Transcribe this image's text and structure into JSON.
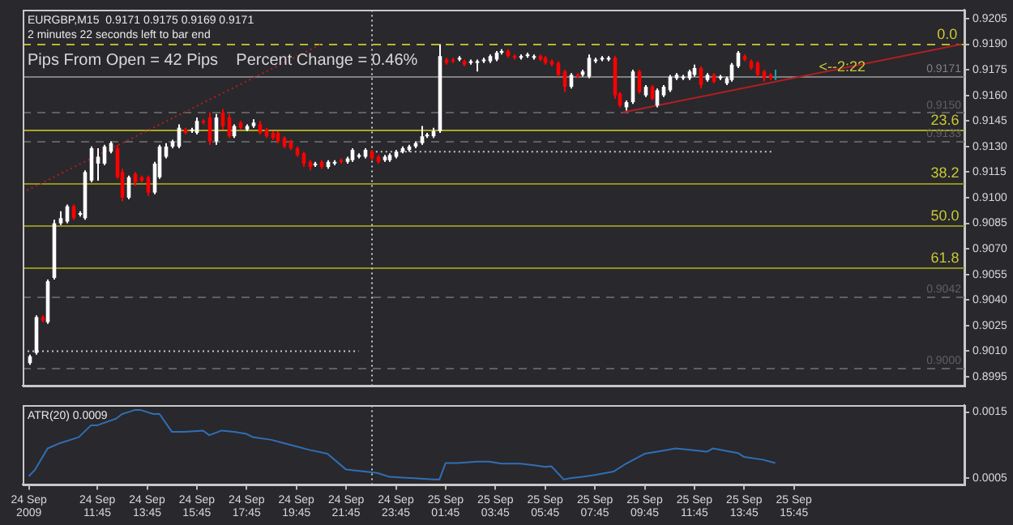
{
  "chart_data": [
    {
      "type": "candlestick",
      "title": "EURGBP,M15  0.9171 0.9175 0.9169 0.9171",
      "subtitle": "2 minutes 22 seconds left to bar end",
      "annotations": [
        "Pips From Open = 42 Pips    Percent Change = 0.46%",
        {
          "text": "<--2:22",
          "x": "2009-09-25T16:45",
          "y": 0.9171
        },
        {
          "text": "0.0",
          "x": "2009-09-25T21:30",
          "y": 0.919
        },
        {
          "text": "23.6",
          "x": "2009-09-25T21:15",
          "y": 0.914
        },
        {
          "text": "38.2",
          "x": "2009-09-25T21:15",
          "y": 0.9109
        },
        {
          "text": "50.0",
          "x": "2009-09-25T21:15",
          "y": 0.9084
        },
        {
          "text": "61.8",
          "x": "2009-09-25T21:15",
          "y": 0.9059
        }
      ],
      "x": [
        "2009-09-24T09:00",
        "2009-09-24T09:15",
        "2009-09-24T09:30",
        "2009-09-24T09:45",
        "2009-09-24T10:00",
        "2009-09-24T10:15",
        "2009-09-24T10:30",
        "2009-09-24T10:45",
        "2009-09-24T11:00",
        "2009-09-24T11:15",
        "2009-09-24T11:30",
        "2009-09-24T11:45",
        "2009-09-24T12:00",
        "2009-09-24T12:15",
        "2009-09-24T12:30",
        "2009-09-24T12:45",
        "2009-09-24T13:00",
        "2009-09-24T13:15",
        "2009-09-24T13:30",
        "2009-09-24T13:45",
        "2009-09-24T14:00",
        "2009-09-24T14:15",
        "2009-09-24T14:30",
        "2009-09-24T14:45",
        "2009-09-24T15:00",
        "2009-09-24T15:15",
        "2009-09-24T15:30",
        "2009-09-24T15:45",
        "2009-09-24T16:00",
        "2009-09-24T16:15",
        "2009-09-24T16:30",
        "2009-09-24T16:45",
        "2009-09-24T17:00",
        "2009-09-24T17:15",
        "2009-09-24T17:30",
        "2009-09-24T17:45",
        "2009-09-24T18:00",
        "2009-09-24T18:15",
        "2009-09-24T18:30",
        "2009-09-24T18:45",
        "2009-09-24T19:00",
        "2009-09-24T19:15",
        "2009-09-24T19:30",
        "2009-09-24T19:45",
        "2009-09-24T20:00",
        "2009-09-24T20:15",
        "2009-09-24T20:30",
        "2009-09-24T20:45",
        "2009-09-24T21:00",
        "2009-09-24T21:15",
        "2009-09-24T21:30",
        "2009-09-24T21:45",
        "2009-09-24T22:00",
        "2009-09-24T22:15",
        "2009-09-24T22:30",
        "2009-09-24T22:45",
        "2009-09-24T23:00",
        "2009-09-24T23:15",
        "2009-09-24T23:30",
        "2009-09-24T23:45",
        "2009-09-25T00:00",
        "2009-09-25T00:15",
        "2009-09-25T00:30",
        "2009-09-25T00:45",
        "2009-09-25T01:00",
        "2009-09-25T01:15",
        "2009-09-25T01:30",
        "2009-09-25T01:45",
        "2009-09-25T02:00",
        "2009-09-25T02:15",
        "2009-09-25T02:30",
        "2009-09-25T02:45",
        "2009-09-25T03:00",
        "2009-09-25T03:15",
        "2009-09-25T03:30",
        "2009-09-25T03:45",
        "2009-09-25T04:00",
        "2009-09-25T04:15",
        "2009-09-25T04:30",
        "2009-09-25T04:45",
        "2009-09-25T05:00",
        "2009-09-25T05:15",
        "2009-09-25T05:30",
        "2009-09-25T05:45",
        "2009-09-25T06:00",
        "2009-09-25T06:15",
        "2009-09-25T06:30",
        "2009-09-25T06:45",
        "2009-09-25T07:00",
        "2009-09-25T07:15",
        "2009-09-25T07:30",
        "2009-09-25T07:45",
        "2009-09-25T08:00",
        "2009-09-25T08:15",
        "2009-09-25T08:30",
        "2009-09-25T08:45",
        "2009-09-25T09:00",
        "2009-09-25T09:15",
        "2009-09-25T09:30",
        "2009-09-25T09:45",
        "2009-09-25T10:00",
        "2009-09-25T10:15",
        "2009-09-25T10:30",
        "2009-09-25T10:45",
        "2009-09-25T11:00",
        "2009-09-25T11:15",
        "2009-09-25T11:30",
        "2009-09-25T11:45",
        "2009-09-25T12:00",
        "2009-09-25T12:15",
        "2009-09-25T12:30",
        "2009-09-25T12:45",
        "2009-09-25T13:00",
        "2009-09-25T13:15",
        "2009-09-25T13:30",
        "2009-09-25T13:45",
        "2009-09-25T14:00",
        "2009-09-25T14:15",
        "2009-09-25T14:30",
        "2009-09-25T14:45",
        "2009-09-25T15:00"
      ],
      "ohlc": [
        [
          0.9003,
          0.9008,
          0.9002,
          0.9007
        ],
        [
          0.9009,
          0.9031,
          0.9008,
          0.903
        ],
        [
          0.903,
          0.9031,
          0.9027,
          0.9028
        ],
        [
          0.9027,
          0.9052,
          0.9026,
          0.9051
        ],
        [
          0.9053,
          0.9087,
          0.9052,
          0.9085
        ],
        [
          0.9085,
          0.9092,
          0.9084,
          0.9088
        ],
        [
          0.9086,
          0.9096,
          0.9085,
          0.9095
        ],
        [
          0.9095,
          0.9096,
          0.9087,
          0.9088
        ],
        [
          0.909,
          0.9092,
          0.9089,
          0.9091
        ],
        [
          0.9088,
          0.9116,
          0.9087,
          0.9115
        ],
        [
          0.911,
          0.913,
          0.9109,
          0.9129
        ],
        [
          0.912,
          0.9129,
          0.911,
          0.9124
        ],
        [
          0.912,
          0.9131,
          0.9119,
          0.913
        ],
        [
          0.9127,
          0.9133,
          0.9126,
          0.9132
        ],
        [
          0.9129,
          0.9131,
          0.9111,
          0.9112
        ],
        [
          0.9115,
          0.9117,
          0.9098,
          0.91
        ],
        [
          0.91,
          0.9113,
          0.9099,
          0.9112
        ],
        [
          0.9114,
          0.9115,
          0.9107,
          0.9109
        ],
        [
          0.9112,
          0.9113,
          0.9109,
          0.911
        ],
        [
          0.9112,
          0.9113,
          0.9101,
          0.9103
        ],
        [
          0.9103,
          0.9121,
          0.9102,
          0.912
        ],
        [
          0.9112,
          0.9131,
          0.9111,
          0.913
        ],
        [
          0.9124,
          0.9132,
          0.9123,
          0.913
        ],
        [
          0.913,
          0.9134,
          0.9129,
          0.9133
        ],
        [
          0.913,
          0.9143,
          0.9129,
          0.9141
        ],
        [
          0.914,
          0.9141,
          0.9137,
          0.9138
        ],
        [
          0.9139,
          0.9141,
          0.9138,
          0.914
        ],
        [
          0.9138,
          0.9147,
          0.9137,
          0.9145
        ],
        [
          0.9145,
          0.9146,
          0.9143,
          0.9144
        ],
        [
          0.9147,
          0.915,
          0.9131,
          0.9133
        ],
        [
          0.9133,
          0.9149,
          0.9131,
          0.9147
        ],
        [
          0.915,
          0.9152,
          0.914,
          0.9142
        ],
        [
          0.9147,
          0.9149,
          0.9135,
          0.9136
        ],
        [
          0.9136,
          0.9143,
          0.9135,
          0.9142
        ],
        [
          0.9144,
          0.9145,
          0.914,
          0.9141
        ],
        [
          0.914,
          0.9143,
          0.9139,
          0.9142
        ],
        [
          0.9142,
          0.9146,
          0.9141,
          0.9144
        ],
        [
          0.9143,
          0.9145,
          0.9137,
          0.9138
        ],
        [
          0.914,
          0.9141,
          0.9135,
          0.9136
        ],
        [
          0.9138,
          0.9139,
          0.9134,
          0.9135
        ],
        [
          0.9138,
          0.9139,
          0.9132,
          0.9133
        ],
        [
          0.9135,
          0.9136,
          0.9129,
          0.913
        ],
        [
          0.9133,
          0.9134,
          0.9128,
          0.9129
        ],
        [
          0.9129,
          0.913,
          0.9124,
          0.9125
        ],
        [
          0.9126,
          0.9127,
          0.9118,
          0.912
        ],
        [
          0.9121,
          0.9122,
          0.9116,
          0.9118
        ],
        [
          0.9119,
          0.9121,
          0.9118,
          0.912
        ],
        [
          0.9121,
          0.9122,
          0.9117,
          0.9118
        ],
        [
          0.9118,
          0.9122,
          0.9117,
          0.9121
        ],
        [
          0.912,
          0.9122,
          0.9119,
          0.9121
        ],
        [
          0.9122,
          0.9123,
          0.912,
          0.9121
        ],
        [
          0.9121,
          0.9124,
          0.912,
          0.9123
        ],
        [
          0.9122,
          0.9129,
          0.9121,
          0.9128
        ],
        [
          0.9124,
          0.9126,
          0.9123,
          0.9125
        ],
        [
          0.9124,
          0.9129,
          0.9123,
          0.9128
        ],
        [
          0.9127,
          0.9128,
          0.9122,
          0.9123
        ],
        [
          0.9124,
          0.9125,
          0.912,
          0.9121
        ],
        [
          0.9122,
          0.9125,
          0.9121,
          0.9124
        ],
        [
          0.9122,
          0.9126,
          0.9121,
          0.9125
        ],
        [
          0.9124,
          0.9128,
          0.9123,
          0.9127
        ],
        [
          0.9127,
          0.913,
          0.9126,
          0.9129
        ],
        [
          0.9128,
          0.9131,
          0.9127,
          0.913
        ],
        [
          0.913,
          0.9133,
          0.9129,
          0.9132
        ],
        [
          0.9132,
          0.9142,
          0.9131,
          0.9136
        ],
        [
          0.9136,
          0.9138,
          0.9135,
          0.9137
        ],
        [
          0.9136,
          0.9141,
          0.9135,
          0.9139
        ],
        [
          0.9139,
          0.919,
          0.9138,
          0.9183
        ],
        [
          0.9181,
          0.9182,
          0.9178,
          0.9179
        ],
        [
          0.9181,
          0.9182,
          0.9179,
          0.918
        ],
        [
          0.9181,
          0.9183,
          0.918,
          0.9182
        ],
        [
          0.918,
          0.9181,
          0.9177,
          0.9178
        ],
        [
          0.9179,
          0.9181,
          0.9178,
          0.918
        ],
        [
          0.9179,
          0.9181,
          0.9174,
          0.918
        ],
        [
          0.918,
          0.9182,
          0.9179,
          0.9181
        ],
        [
          0.918,
          0.9184,
          0.9179,
          0.9183
        ],
        [
          0.9181,
          0.9186,
          0.918,
          0.9185
        ],
        [
          0.9185,
          0.9187,
          0.9184,
          0.9186
        ],
        [
          0.9186,
          0.9187,
          0.9182,
          0.9183
        ],
        [
          0.9183,
          0.9184,
          0.9181,
          0.9182
        ],
        [
          0.9182,
          0.9184,
          0.9181,
          0.9183
        ],
        [
          0.9183,
          0.9185,
          0.9182,
          0.9184
        ],
        [
          0.9182,
          0.9184,
          0.9181,
          0.9183
        ],
        [
          0.9183,
          0.9184,
          0.918,
          0.9181
        ],
        [
          0.9182,
          0.9183,
          0.9178,
          0.9179
        ],
        [
          0.918,
          0.9181,
          0.9177,
          0.9178
        ],
        [
          0.9179,
          0.918,
          0.9171,
          0.9172
        ],
        [
          0.9174,
          0.9175,
          0.9162,
          0.9165
        ],
        [
          0.9165,
          0.9173,
          0.9164,
          0.9172
        ],
        [
          0.9172,
          0.9173,
          0.917,
          0.9171
        ],
        [
          0.9172,
          0.9175,
          0.9171,
          0.9174
        ],
        [
          0.9171,
          0.9184,
          0.917,
          0.9182
        ],
        [
          0.918,
          0.9182,
          0.9179,
          0.9181
        ],
        [
          0.9181,
          0.9183,
          0.918,
          0.9182
        ],
        [
          0.9181,
          0.9183,
          0.918,
          0.9182
        ],
        [
          0.9182,
          0.9183,
          0.9158,
          0.916
        ],
        [
          0.9161,
          0.9162,
          0.9153,
          0.9154
        ],
        [
          0.9153,
          0.9157,
          0.9151,
          0.9156
        ],
        [
          0.9156,
          0.9175,
          0.9155,
          0.9174
        ],
        [
          0.9174,
          0.9175,
          0.9161,
          0.9162
        ],
        [
          0.916,
          0.9166,
          0.9159,
          0.9165
        ],
        [
          0.9165,
          0.9166,
          0.9157,
          0.9158
        ],
        [
          0.9154,
          0.9164,
          0.9153,
          0.9163
        ],
        [
          0.916,
          0.9166,
          0.9159,
          0.9165
        ],
        [
          0.9163,
          0.9172,
          0.9162,
          0.9171
        ],
        [
          0.917,
          0.9173,
          0.9169,
          0.9172
        ],
        [
          0.917,
          0.9172,
          0.9169,
          0.9171
        ],
        [
          0.917,
          0.9175,
          0.9169,
          0.9174
        ],
        [
          0.9172,
          0.9178,
          0.9171,
          0.9176
        ],
        [
          0.9176,
          0.9177,
          0.9164,
          0.9166
        ],
        [
          0.9169,
          0.9173,
          0.9168,
          0.9172
        ],
        [
          0.9172,
          0.9173,
          0.9167,
          0.9168
        ],
        [
          0.917,
          0.9172,
          0.9169,
          0.9171
        ],
        [
          0.9167,
          0.9171,
          0.9166,
          0.917
        ],
        [
          0.9169,
          0.9179,
          0.9168,
          0.9178
        ],
        [
          0.9177,
          0.9186,
          0.9176,
          0.9185
        ],
        [
          0.9183,
          0.9184,
          0.918,
          0.9181
        ],
        [
          0.918,
          0.9181,
          0.9175,
          0.9176
        ],
        [
          0.9179,
          0.918,
          0.9171,
          0.9172
        ],
        [
          0.9174,
          0.9175,
          0.9168,
          0.917
        ],
        [
          0.9172,
          0.9173,
          0.9169,
          0.917
        ],
        [
          0.9171,
          0.9175,
          0.9169,
          0.9171
        ]
      ],
      "colors": [
        "#ffffff",
        "#ffffff",
        "#ff0000",
        "#ffffff",
        "#ffffff",
        "#ffffff",
        "#ffffff",
        "#ff0000",
        "#ffffff",
        "#ffffff",
        "#ffffff",
        "#ffffff",
        "#ffffff",
        "#ffffff",
        "#ff0000",
        "#ff0000",
        "#ffffff",
        "#ff0000",
        "#ff0000",
        "#ff0000",
        "#ffffff",
        "#ffffff",
        "#ffffff",
        "#ffffff",
        "#ffffff",
        "#ff0000",
        "#ffffff",
        "#ffffff",
        "#ff0000",
        "#ff0000",
        "#ffffff",
        "#ff0000",
        "#ff0000",
        "#ffffff",
        "#ff0000",
        "#ffffff",
        "#ffffff",
        "#ff0000",
        "#ff0000",
        "#ff0000",
        "#ff0000",
        "#ff0000",
        "#ff0000",
        "#ff0000",
        "#ff0000",
        "#ff0000",
        "#ffffff",
        "#ff0000",
        "#ffffff",
        "#ffffff",
        "#ff0000",
        "#ffffff",
        "#ffffff",
        "#ffffff",
        "#ffffff",
        "#ff0000",
        "#ff0000",
        "#ffffff",
        "#ffffff",
        "#ffffff",
        "#ffffff",
        "#ffffff",
        "#ffffff",
        "#ffffff",
        "#ffffff",
        "#ffffff",
        "#ffffff",
        "#ff0000",
        "#ff0000",
        "#ffffff",
        "#ff0000",
        "#ffffff",
        "#ffffff",
        "#ffffff",
        "#ffffff",
        "#ffffff",
        "#ffffff",
        "#ff0000",
        "#ff0000",
        "#ffffff",
        "#ffffff",
        "#ffffff",
        "#ff0000",
        "#ff0000",
        "#ff0000",
        "#ff0000",
        "#ff0000",
        "#ffffff",
        "#ff0000",
        "#ffffff",
        "#ffffff",
        "#ffffff",
        "#ffffff",
        "#ffffff",
        "#ff0000",
        "#ff0000",
        "#ffffff",
        "#ffffff",
        "#ff0000",
        "#ffffff",
        "#ff0000",
        "#ffffff",
        "#ffffff",
        "#ffffff",
        "#ffffff",
        "#ffffff",
        "#ffffff",
        "#ffffff",
        "#ff0000",
        "#ffffff",
        "#ff0000",
        "#ffffff",
        "#ffffff",
        "#ffffff",
        "#ffffff",
        "#ff0000",
        "#ff0000",
        "#ff0000",
        "#ff0000",
        "#ff0000",
        "#2a9a9a"
      ],
      "series": [
        {
          "type": "line",
          "color": "#b02020",
          "line_style": "dotted",
          "x": [
            "2009-09-24T08:45",
            "2009-09-24T20:45"
          ],
          "values": [
            0.9103,
            0.919
          ]
        },
        {
          "type": "line",
          "color": "#b02020",
          "line_style": "solid",
          "x": [
            "2009-09-25T08:52",
            "2009-09-25T22:30"
          ],
          "values": [
            0.915,
            0.919
          ]
        },
        {
          "type": "line",
          "color": "#c8c8c8",
          "line_style": "dotted",
          "x": [
            "2009-09-24T22:45",
            "2009-09-25T14:55"
          ],
          "values": [
            0.9127,
            0.9127
          ]
        },
        {
          "type": "line",
          "color": "#c8c8c8",
          "line_style": "dotted",
          "x": [
            "2009-09-24T08:45",
            "2009-09-24T22:15"
          ],
          "values": [
            0.901,
            0.901
          ]
        }
      ],
      "ref_lines": [
        {
          "axis": "y",
          "value": 0.919,
          "color": "#b8b830",
          "line_style": "dashed"
        },
        {
          "axis": "y",
          "value": 0.914,
          "color": "#a8a828"
        },
        {
          "axis": "y",
          "value": 0.9109,
          "color": "#909020"
        },
        {
          "axis": "y",
          "value": 0.9084,
          "color": "#909020"
        },
        {
          "axis": "y",
          "value": 0.9059,
          "color": "#909020"
        },
        {
          "axis": "y",
          "value": 0.9171,
          "label": "0.9171",
          "color": "#808080"
        },
        {
          "axis": "y",
          "value": 0.915,
          "label": "0.9150",
          "color": "#606060",
          "line_style": "dashed"
        },
        {
          "axis": "y",
          "value": 0.9133,
          "label": "0.9133",
          "color": "#606060",
          "line_style": "dashed"
        },
        {
          "axis": "y",
          "value": 0.9042,
          "label": "0.9042",
          "color": "#606060",
          "line_style": "dashed"
        },
        {
          "axis": "y",
          "value": 0.9,
          "label": "0.9000",
          "color": "#606060",
          "line_style": "dashed"
        },
        {
          "axis": "x",
          "value": "2009-09-24T22:45",
          "color": "#c8c8c8",
          "line_style": "dotted"
        }
      ],
      "marker": "none",
      "xlim": [
        "2009-09-24T08:45",
        "2009-09-25T22:36"
      ],
      "ylim": [
        0.899,
        0.921
      ],
      "yticks": [
        0.8995,
        {
          "value": 0.901,
          "label": "0.9010"
        },
        0.9025,
        {
          "value": 0.904,
          "label": "0.9040"
        },
        0.9055,
        {
          "value": 0.907,
          "label": "0.9070"
        },
        0.9085,
        {
          "value": 0.91,
          "label": "0.9100"
        },
        0.9115,
        {
          "value": 0.913,
          "label": "0.9130"
        },
        0.9145,
        {
          "value": 0.916,
          "label": "0.9160"
        },
        0.9175,
        {
          "value": 0.919,
          "label": "0.9190"
        },
        0.9205
      ],
      "tick_labels": "y"
    },
    {
      "type": "line",
      "title": "ATR(20) 0.0009",
      "color": "#2f6fb5",
      "marker": "none",
      "x": [
        "2009-09-24T09:00",
        "2009-09-24T09:15",
        "2009-09-24T09:45",
        "2009-09-24T10:15",
        "2009-09-24T11:00",
        "2009-09-24T11:30",
        "2009-09-24T11:45",
        "2009-09-24T12:30",
        "2009-09-24T12:45",
        "2009-09-24T13:15",
        "2009-09-24T13:30",
        "2009-09-24T14:00",
        "2009-09-24T14:15",
        "2009-09-24T14:45",
        "2009-09-24T15:15",
        "2009-09-24T16:00",
        "2009-09-24T16:15",
        "2009-09-24T16:45",
        "2009-09-24T17:15",
        "2009-09-24T17:45",
        "2009-09-24T18:00",
        "2009-09-24T18:45",
        "2009-09-24T19:15",
        "2009-09-24T19:45",
        "2009-09-24T20:15",
        "2009-09-24T21:00",
        "2009-09-24T21:45",
        "2009-09-24T22:30",
        "2009-09-24T23:00",
        "2009-09-24T23:30",
        "2009-09-25T00:30",
        "2009-09-25T01:15",
        "2009-09-25T01:30",
        "2009-09-25T01:45",
        "2009-09-25T02:15",
        "2009-09-25T03:00",
        "2009-09-25T03:30",
        "2009-09-25T04:00",
        "2009-09-25T04:45",
        "2009-09-25T05:15",
        "2009-09-25T05:45",
        "2009-09-25T06:00",
        "2009-09-25T06:30",
        "2009-09-25T06:45",
        "2009-09-25T07:15",
        "2009-09-25T07:45",
        "2009-09-25T08:30",
        "2009-09-25T09:00",
        "2009-09-25T09:45",
        "2009-09-25T10:15",
        "2009-09-25T11:00",
        "2009-09-25T11:30",
        "2009-09-25T12:15",
        "2009-09-25T12:30",
        "2009-09-25T13:30",
        "2009-09-25T13:45",
        "2009-09-25T14:30",
        "2009-09-25T15:00"
      ],
      "values": [
        0.00053,
        0.00063,
        0.00095,
        0.00103,
        0.00112,
        0.0013,
        0.0013,
        0.0014,
        0.00147,
        0.00153,
        0.00153,
        0.00147,
        0.00147,
        0.0012,
        0.0012,
        0.00122,
        0.00115,
        0.00122,
        0.0012,
        0.00117,
        0.00112,
        0.00108,
        0.00103,
        0.00098,
        0.00093,
        0.00087,
        0.00063,
        0.0006,
        0.00058,
        0.00052,
        0.0005,
        0.00048,
        0.00048,
        0.00073,
        0.00073,
        0.00075,
        0.00075,
        0.00072,
        0.00072,
        0.0007,
        0.00067,
        0.00068,
        0.00048,
        0.0005,
        0.00052,
        0.00055,
        0.0006,
        0.00072,
        0.00087,
        0.0009,
        0.00095,
        0.00093,
        0.0009,
        0.00095,
        0.00088,
        0.00082,
        0.00078,
        0.00073
      ],
      "ref_lines": [
        {
          "axis": "x",
          "value": "2009-09-24T22:45",
          "color": "#c8c8c8",
          "line_style": "dotted"
        }
      ],
      "xlim": [
        "2009-09-24T08:45",
        "2009-09-25T22:36"
      ],
      "ylim": [
        0.0004,
        0.0016
      ],
      "yticks": [
        0.0005,
        0.0015
      ],
      "xticks": [
        {
          "value": "2009-09-24T09:00",
          "label": "24 Sep 2009"
        },
        {
          "value": "2009-09-24T11:45",
          "label": "24 Sep 11:45"
        },
        {
          "value": "2009-09-24T13:45",
          "label": "24 Sep 13:45"
        },
        {
          "value": "2009-09-24T15:45",
          "label": "24 Sep 15:45"
        },
        {
          "value": "2009-09-24T17:45",
          "label": "24 Sep 17:45"
        },
        {
          "value": "2009-09-24T19:45",
          "label": "24 Sep 19:45"
        },
        {
          "value": "2009-09-24T21:45",
          "label": "24 Sep 21:45"
        },
        {
          "value": "2009-09-24T23:45",
          "label": "24 Sep 23:45"
        },
        {
          "value": "2009-09-25T01:45",
          "label": "25 Sep 01:45"
        },
        {
          "value": "2009-09-25T03:45",
          "label": "25 Sep 03:45"
        },
        {
          "value": "2009-09-25T05:45",
          "label": "25 Sep 05:45"
        },
        {
          "value": "2009-09-25T07:45",
          "label": "25 Sep 07:45"
        },
        {
          "value": "2009-09-25T09:45",
          "label": "25 Sep 09:45"
        },
        {
          "value": "2009-09-25T11:45",
          "label": "25 Sep 11:45"
        },
        {
          "value": "2009-09-25T13:45",
          "label": "25 Sep 13:45"
        },
        {
          "value": "2009-09-25T15:45",
          "label": "25 Sep 15:45"
        }
      ]
    }
  ]
}
